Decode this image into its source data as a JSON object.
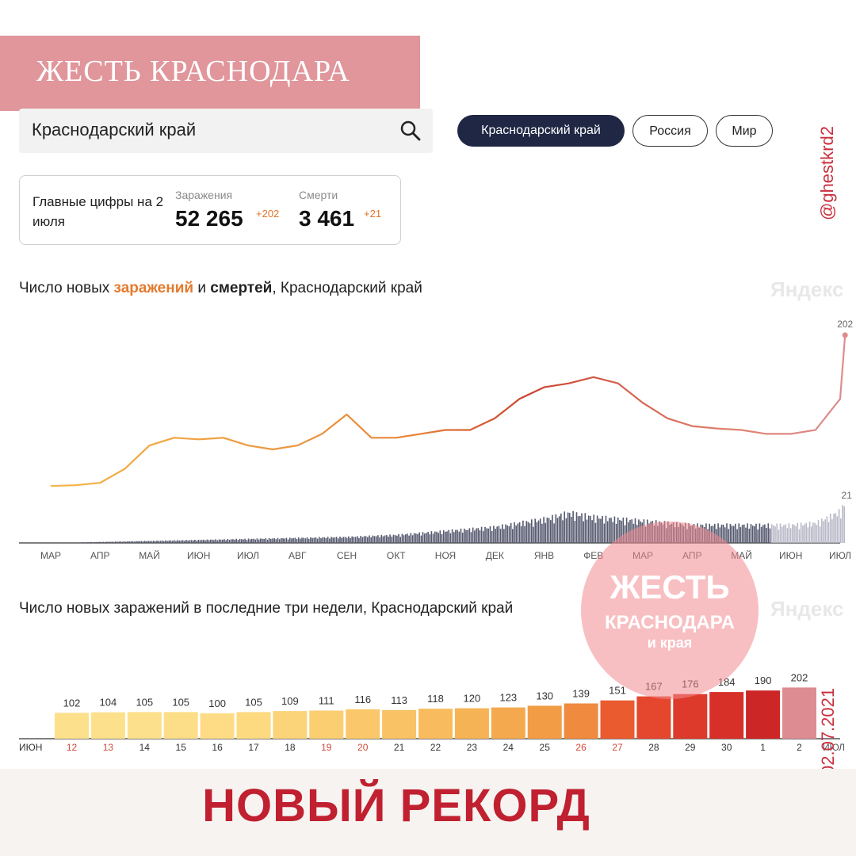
{
  "banner": {
    "title": "ЖЕСТЬ КРАСНОДАРА"
  },
  "search": {
    "value": "Краснодарский край"
  },
  "region_tabs": [
    {
      "label": "Краснодарский край",
      "active": true
    },
    {
      "label": "Россия",
      "active": false
    },
    {
      "label": "Мир",
      "active": false
    }
  ],
  "summary": {
    "label": "Главные цифры на 2 июля",
    "infections": {
      "label": "Заражения",
      "value": "52 265",
      "delta": "+202"
    },
    "deaths": {
      "label": "Смерти",
      "value": "3 461",
      "delta": "+21"
    }
  },
  "chart1": {
    "title_pre": "Число новых ",
    "title_orange": "заражений",
    "title_mid": " и ",
    "title_bold": "смертей",
    "title_post": ", Краснодарский край",
    "watermark": "Яндекс"
  },
  "chart2": {
    "title": "Число новых заражений в последние три недели, Краснодарский край",
    "watermark": "Яндекс"
  },
  "side_handle": "@ghestkrd2",
  "side_date": "02.07.2021",
  "stamp": {
    "line1": "ЖЕСТЬ",
    "line2": "КРАСНОДАРА",
    "line3": "и края"
  },
  "footer": {
    "headline": "НОВЫЙ РЕКОРД"
  },
  "colors": {
    "accent_orange": "#e37b2e",
    "record_red": "#c0202f",
    "banner_pink": "#e0969b",
    "tab_dark": "#1f2744"
  },
  "chart_data": [
    {
      "type": "line",
      "title": "Число новых заражений и смертей, Краснодарский край",
      "months": [
        "МАР",
        "АПР",
        "МАЙ",
        "ИЮН",
        "ИЮЛ",
        "АВГ",
        "СЕН",
        "ОКТ",
        "НОЯ",
        "ДЕК",
        "ЯНВ",
        "ФЕВ",
        "МАР",
        "АПР",
        "МАЙ",
        "ИЮН",
        "ИЮЛ"
      ],
      "series": [
        {
          "name": "заражений",
          "end_label": "202",
          "x": [
            0,
            0.5,
            1,
            1.5,
            2,
            2.5,
            3,
            3.5,
            4,
            4.5,
            5,
            5.5,
            6,
            6.5,
            7,
            7.5,
            8,
            8.5,
            9,
            9.5,
            10,
            10.5,
            11,
            11.5,
            12,
            12.5,
            13,
            13.5,
            14,
            14.5,
            15,
            15.5,
            16,
            16.1
          ],
          "values": [
            8,
            9,
            12,
            30,
            60,
            70,
            68,
            70,
            60,
            55,
            60,
            75,
            100,
            70,
            70,
            75,
            80,
            80,
            95,
            120,
            135,
            140,
            148,
            140,
            115,
            95,
            85,
            82,
            80,
            75,
            75,
            80,
            120,
            202
          ]
        },
        {
          "name": "смертей",
          "end_label": "21",
          "x": [
            0,
            1,
            2,
            3,
            4,
            5,
            6,
            7,
            8,
            9,
            10,
            10.5,
            11,
            12,
            13,
            14,
            15,
            15.5,
            16,
            16.1
          ],
          "values": [
            0,
            0.5,
            1,
            1.5,
            2,
            2.5,
            3,
            4,
            6,
            8,
            12,
            15,
            13,
            11,
            9,
            9,
            9,
            10,
            16,
            21
          ]
        }
      ]
    },
    {
      "type": "bar",
      "title": "Число новых заражений в последние три недели, Краснодарский край",
      "month_start": "ИЮН",
      "month_end": "ИЮЛ",
      "categories": [
        "12",
        "13",
        "14",
        "15",
        "16",
        "17",
        "18",
        "19",
        "20",
        "21",
        "22",
        "23",
        "24",
        "25",
        "26",
        "27",
        "28",
        "29",
        "30",
        "1",
        "2"
      ],
      "values": [
        102,
        104,
        105,
        105,
        100,
        105,
        109,
        111,
        116,
        113,
        118,
        120,
        123,
        130,
        139,
        151,
        167,
        176,
        184,
        190,
        202
      ],
      "weekend_days": [
        "12",
        "13",
        "19",
        "20",
        "26",
        "27"
      ]
    }
  ]
}
